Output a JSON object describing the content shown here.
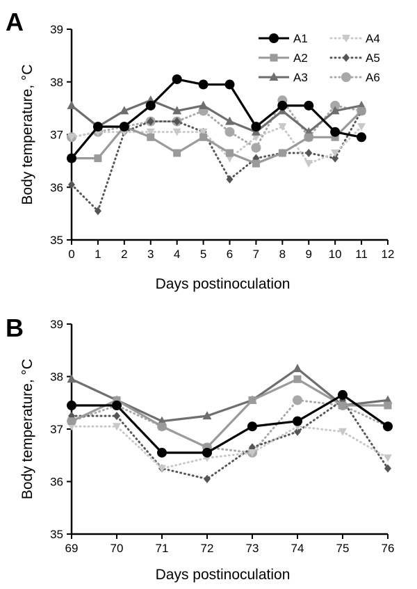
{
  "chart_data": [
    {
      "type": "line",
      "panel": "A",
      "xlabel": "Days postinoculation",
      "ylabel": "Body temperature, °C",
      "xlim": [
        0,
        12
      ],
      "ylim": [
        35,
        39
      ],
      "xticks": [
        0,
        1,
        2,
        3,
        4,
        5,
        6,
        7,
        8,
        9,
        10,
        11,
        12
      ],
      "yticks": [
        35,
        36,
        37,
        38,
        39
      ],
      "grid": false,
      "legend": "top-right",
      "x": [
        0,
        1,
        2,
        3,
        4,
        5,
        6,
        7,
        8,
        9,
        10,
        11
      ],
      "series": [
        {
          "name": "A1",
          "color": "#000000",
          "style": "solid",
          "marker": "circle",
          "values": [
            36.55,
            37.15,
            37.15,
            37.55,
            38.05,
            37.95,
            37.95,
            37.15,
            37.55,
            37.55,
            37.05,
            36.95
          ]
        },
        {
          "name": "A2",
          "color": "#9a9a9a",
          "style": "solid",
          "marker": "square",
          "values": [
            36.55,
            36.55,
            37.15,
            36.95,
            36.65,
            36.95,
            36.65,
            36.45,
            36.65,
            36.95,
            36.95,
            37.45
          ]
        },
        {
          "name": "A3",
          "color": "#6e6e6e",
          "style": "solid",
          "marker": "triangle",
          "values": [
            37.55,
            37.15,
            37.45,
            37.65,
            37.45,
            37.55,
            37.25,
            37.05,
            37.45,
            37.05,
            37.45,
            37.55
          ]
        },
        {
          "name": "A4",
          "color": "#c8c8c8",
          "style": "dotted",
          "marker": "triangle-down",
          "values": [
            36.95,
            37.05,
            37.05,
            37.05,
            37.05,
            37.05,
            36.55,
            36.95,
            37.15,
            36.45,
            36.65,
            37.15
          ]
        },
        {
          "name": "A5",
          "color": "#555555",
          "style": "dotted",
          "marker": "diamond",
          "values": [
            36.05,
            35.55,
            37.05,
            37.25,
            37.25,
            37.05,
            36.15,
            36.55,
            36.65,
            36.65,
            36.55,
            37.45
          ]
        },
        {
          "name": "A6",
          "color": "#a8a8a8",
          "style": "dotted",
          "marker": "circle",
          "values": [
            36.95,
            37.05,
            37.15,
            37.25,
            37.25,
            37.45,
            37.05,
            36.75,
            37.65,
            36.95,
            37.55,
            37.45
          ]
        }
      ]
    },
    {
      "type": "line",
      "panel": "B",
      "xlabel": "Days postinoculation",
      "ylabel": "Body temperature, °C",
      "xlim": [
        69,
        76
      ],
      "ylim": [
        35,
        39
      ],
      "xticks": [
        69,
        70,
        71,
        72,
        73,
        74,
        75,
        76
      ],
      "yticks": [
        35,
        36,
        37,
        38,
        39
      ],
      "grid": false,
      "x": [
        69,
        70,
        71,
        72,
        73,
        74,
        75,
        76
      ],
      "series": [
        {
          "name": "A1",
          "color": "#000000",
          "style": "solid",
          "marker": "circle",
          "values": [
            37.45,
            37.45,
            36.55,
            36.55,
            37.05,
            37.15,
            37.65,
            37.05
          ]
        },
        {
          "name": "A2",
          "color": "#9a9a9a",
          "style": "solid",
          "marker": "square",
          "values": [
            37.15,
            37.55,
            37.05,
            36.65,
            37.55,
            37.95,
            37.45,
            37.45
          ]
        },
        {
          "name": "A3",
          "color": "#6e6e6e",
          "style": "solid",
          "marker": "triangle",
          "values": [
            37.95,
            37.55,
            37.15,
            37.25,
            37.55,
            38.15,
            37.45,
            37.55
          ]
        },
        {
          "name": "A4",
          "color": "#c8c8c8",
          "style": "dotted",
          "marker": "triangle-down",
          "values": [
            37.05,
            37.05,
            36.25,
            36.45,
            36.55,
            37.05,
            36.95,
            36.45
          ]
        },
        {
          "name": "A5",
          "color": "#555555",
          "style": "dotted",
          "marker": "diamond",
          "values": [
            37.25,
            37.25,
            36.25,
            36.05,
            36.65,
            36.95,
            37.55,
            36.25
          ]
        },
        {
          "name": "A6",
          "color": "#a8a8a8",
          "style": "dotted",
          "marker": "circle",
          "values": [
            37.15,
            37.45,
            37.05,
            36.65,
            36.55,
            37.55,
            37.45,
            37.05
          ]
        }
      ]
    }
  ]
}
